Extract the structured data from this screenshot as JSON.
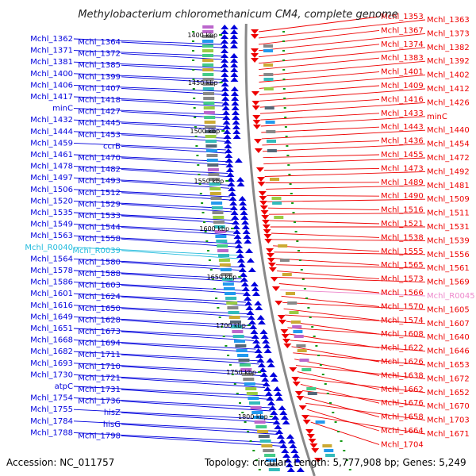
{
  "title": "Methylobacterium chloromethanicum CM4, complete genome",
  "footer": {
    "accession": "Accession: NC_011757",
    "stats": "Topology: circular; Length: 5,777,908 bp; Genes: 5,249"
  },
  "colors": {
    "left_genes": "#0000dd",
    "right_genes": "#ee0000",
    "rna_left": "#22bbdd",
    "rna_right": "#ee88cc",
    "backbone": "#888888"
  },
  "kbp_marks": [
    "1400 kbp",
    "1450 kbp",
    "1500 kbp",
    "1550 kbp",
    "1600 kbp",
    "1650 kbp",
    "1700 kbp",
    "1750 kbp",
    "1800 kbp"
  ],
  "left_labels": [
    "Mchl_1362",
    "Mchl_1364",
    "Mchl_1371",
    "Mchl_1372",
    "Mchl_1381",
    "Mchl_1385",
    "Mchl_1400",
    "Mchl_1399",
    "Mchl_1406",
    "Mchl_1407",
    "Mchl_1417",
    "Mchl_1418",
    "minC",
    "Mchl_1427",
    "Mchl_1432",
    "Mchl_1445",
    "Mchl_1444",
    "Mchl_1453",
    "Mchl_1459",
    "ccrB",
    "Mchl_1461",
    "Mchl_1470",
    "Mchl_1478",
    "Mchl_1482",
    "Mchl_1497",
    "Mchl_1493",
    "Mchl_1506",
    "Mchl_1512",
    "Mchl_1520",
    "Mchl_1529",
    "Mchl_1535",
    "Mchl_1533",
    "Mchl_1549",
    "Mchl_1544",
    "Mchl_1563",
    "Mchl_1558",
    "Mchl_R0040",
    "Mchl_R0039",
    "Mchl_1564",
    "Mchl_1580",
    "Mchl_1578",
    "Mchl_1588",
    "Mchl_1586",
    "Mchl_1603",
    "Mchl_1601",
    "Mchl_1624",
    "Mchl_1616",
    "Mchl_1650",
    "Mchl_1649",
    "Mchl_1628",
    "Mchl_1651",
    "Mchl_1673",
    "Mchl_1668",
    "Mchl_1694",
    "Mchl_1682",
    "Mchl_1711",
    "Mchl_1693",
    "Mchl_1710",
    "Mchl_1730",
    "Mchl_1721",
    "atpC",
    "Mchl_1731",
    "Mchl_1754",
    "Mchl_1736",
    "Mchl_1755",
    "hisZ",
    "Mchl_1784",
    "hisG",
    "Mchl_1788",
    "Mchl_1798"
  ],
  "right_labels": [
    "Mchl_1353",
    "Mchl_1363",
    "Mchl_1367",
    "Mchl_1373",
    "Mchl_1374",
    "Mchl_1382",
    "Mchl_1383",
    "Mchl_1392",
    "Mchl_1401",
    "Mchl_1402",
    "Mchl_1409",
    "Mchl_1412",
    "Mchl_1416",
    "Mchl_1426",
    "Mchl_1433",
    "minC",
    "Mchl_1443",
    "Mchl_1440",
    "Mchl_1436",
    "Mchl_1454",
    "Mchl_1455",
    "Mchl_1472",
    "Mchl_1473",
    "Mchl_1492",
    "Mchl_1489",
    "Mchl_1481",
    "Mchl_1490",
    "Mchl_1509",
    "Mchl_1516",
    "Mchl_1511",
    "Mchl_1521",
    "Mchl_1531",
    "Mchl_1538",
    "Mchl_1539",
    "Mchl_1555",
    "Mchl_1556",
    "Mchl_1565",
    "Mchl_1561",
    "Mchl_1573",
    "Mchl_1569",
    "Mchl_1566",
    "Mchl_R0045",
    "Mchl_1570",
    "Mchl_1605",
    "Mchl_1574",
    "Mchl_1607",
    "Mchl_1608",
    "Mchl_1640",
    "Mchl_1622",
    "Mchl_1646",
    "Mchl_1626",
    "Mchl_1653",
    "Mchl_1638",
    "Mchl_1672",
    "Mchl_1662",
    "Mchl_1652",
    "Mchl_1676",
    "Mchl_1670",
    "Mchl_1658",
    "Mchl_1703",
    "Mchl_1664",
    "Mchl_1671",
    "Mchl_1704"
  ]
}
